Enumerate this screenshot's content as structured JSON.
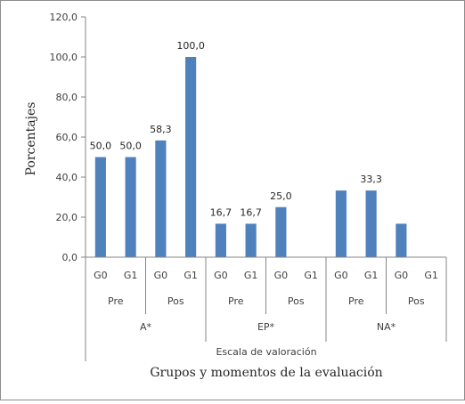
{
  "chart_data": {
    "type": "bar",
    "ylabel": "Porcentajes",
    "xlabel": "Grupos y momentos de la evaluación",
    "scale_label": "Escala de valoración",
    "ylim": [
      0,
      120
    ],
    "y_ticks": [
      "0,0",
      "20,0",
      "40,0",
      "60,0",
      "80,0",
      "100,0",
      "120,0"
    ],
    "bar_color": "#4f81bd",
    "grid": false,
    "categories": [
      {
        "group": "G0",
        "moment": "Pre",
        "scale": "A*",
        "value": 50.0,
        "label": "50,0"
      },
      {
        "group": "G1",
        "moment": "Pre",
        "scale": "A*",
        "value": 50.0,
        "label": "50,0"
      },
      {
        "group": "G0",
        "moment": "Pos",
        "scale": "A*",
        "value": 58.3,
        "label": "58,3"
      },
      {
        "group": "G1",
        "moment": "Pos",
        "scale": "A*",
        "value": 100.0,
        "label": "100,0"
      },
      {
        "group": "G0",
        "moment": "Pre",
        "scale": "EP*",
        "value": 16.7,
        "label": "16,7"
      },
      {
        "group": "G1",
        "moment": "Pre",
        "scale": "EP*",
        "value": 16.7,
        "label": "16,7"
      },
      {
        "group": "G0",
        "moment": "Pos",
        "scale": "EP*",
        "value": 25.0,
        "label": "25,0"
      },
      {
        "group": "G1",
        "moment": "Pos",
        "scale": "EP*",
        "value": 0,
        "label": ""
      },
      {
        "group": "G0",
        "moment": "Pre",
        "scale": "NA*",
        "value": 33.3,
        "label": ""
      },
      {
        "group": "G1",
        "moment": "Pre",
        "scale": "NA*",
        "value": 33.3,
        "label": "33,3"
      },
      {
        "group": "G0",
        "moment": "Pos",
        "scale": "NA*",
        "value": 16.7,
        "label": ""
      },
      {
        "group": "G1",
        "moment": "Pos",
        "scale": "NA*",
        "value": 0,
        "label": ""
      }
    ],
    "moments": [
      {
        "label": "Pre"
      },
      {
        "label": "Pos"
      },
      {
        "label": "Pre"
      },
      {
        "label": "Pos"
      },
      {
        "label": "Pre"
      },
      {
        "label": "Pos"
      }
    ],
    "scales": [
      {
        "label": "A*"
      },
      {
        "label": "EP*"
      },
      {
        "label": "NA*"
      }
    ]
  }
}
